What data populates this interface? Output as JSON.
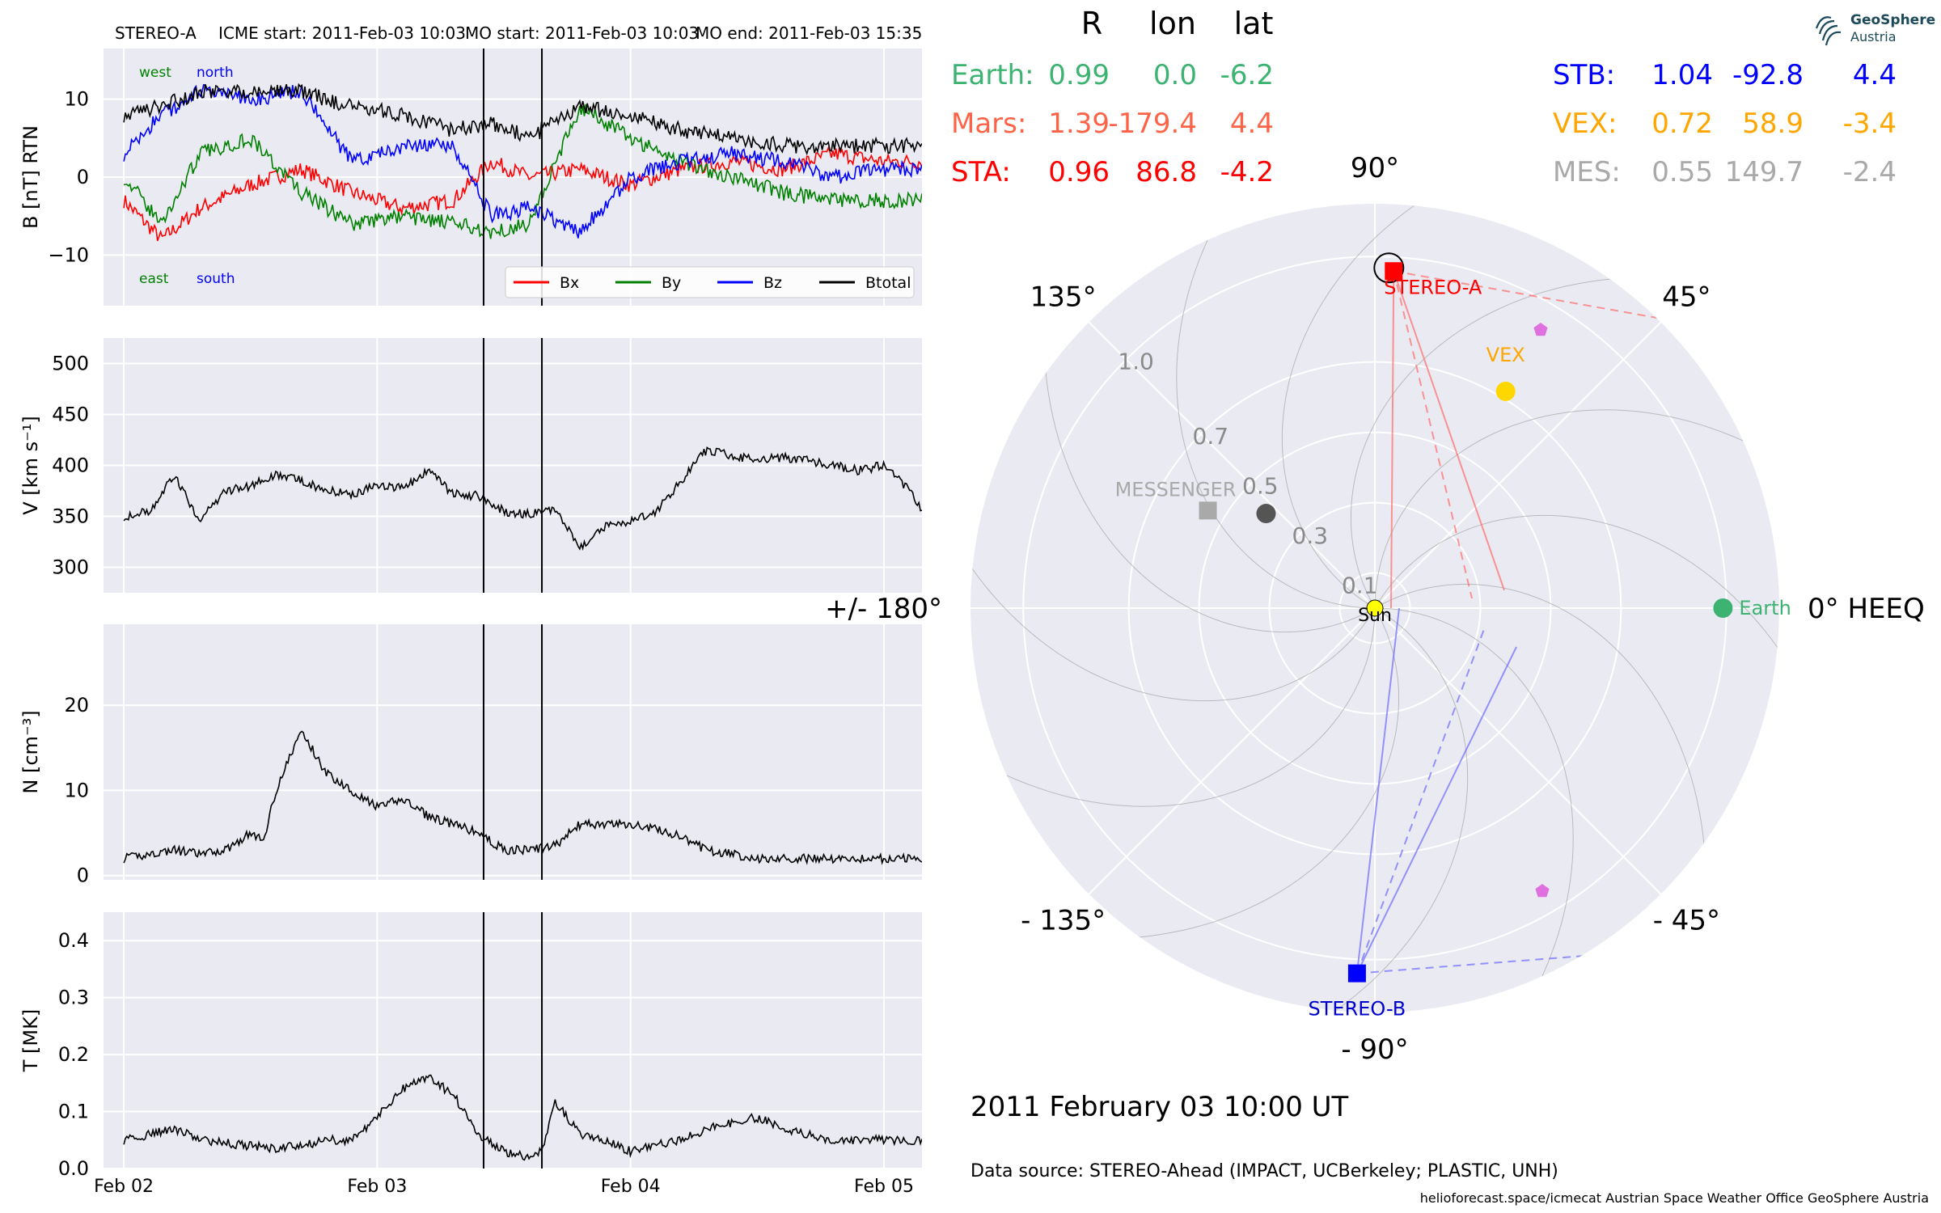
{
  "header": {
    "spacecraft": "STEREO-A",
    "icme_start": "ICME start: 2011-Feb-03 10:03",
    "mo_start": "MO start: 2011-Feb-03 10:03",
    "mo_end": "MO end: 2011-Feb-03 15:35"
  },
  "logo": {
    "name": "GeoSphere",
    "sub": "Austria",
    "icon": "geosphere-logo-icon"
  },
  "colors": {
    "bx": "#ff0000",
    "by": "#008000",
    "bz": "#0000ff",
    "btotal": "#000000",
    "axes_bg": "#eaeaf2",
    "earth": "#3cb371",
    "mars": "#ff6347",
    "sta": "#ff0000",
    "stb": "#0000ff",
    "vex": "#ffa500",
    "mes": "#a9a9a9"
  },
  "chart_data": [
    {
      "type": "line",
      "id": "b-panel",
      "ylabel": "B [nT] RTN",
      "ylim": [
        -16.5,
        16.5
      ],
      "yticks": [
        {
          "v": 10,
          "t": "10"
        },
        {
          "v": 0,
          "t": "0"
        },
        {
          "v": -10,
          "t": "−10"
        }
      ],
      "annotations": [
        {
          "text": "west",
          "color": "#008000",
          "pos": "top-left"
        },
        {
          "text": "north",
          "color": "#0000ff",
          "pos": "top-left"
        },
        {
          "text": "east",
          "color": "#008000",
          "pos": "bottom-left"
        },
        {
          "text": "south",
          "color": "#0000ff",
          "pos": "bottom-left"
        }
      ],
      "legend": {
        "placement": "bottom-right",
        "entries": [
          {
            "name": "Bx",
            "color": "#ff0000"
          },
          {
            "name": "By",
            "color": "#008000"
          },
          {
            "name": "Bz",
            "color": "#0000ff"
          },
          {
            "name": "Btotal",
            "color": "#000000"
          }
        ]
      },
      "series": [
        {
          "name": "Bx",
          "color": "#ff0000",
          "x": [
            0,
            0.15,
            0.3,
            0.5,
            0.7,
            0.9,
            1.1,
            1.3,
            1.45,
            1.6,
            1.8,
            2.0,
            2.2,
            2.4,
            2.6,
            2.8,
            3.0,
            3.15
          ],
          "y": [
            -3,
            -8,
            -4,
            -1,
            1,
            -2,
            -4,
            -3,
            2,
            0,
            1,
            -1,
            1,
            2,
            1,
            3,
            2,
            2
          ]
        },
        {
          "name": "By",
          "color": "#008000",
          "x": [
            0,
            0.15,
            0.3,
            0.5,
            0.7,
            0.9,
            1.1,
            1.3,
            1.45,
            1.6,
            1.8,
            2.0,
            2.2,
            2.4,
            2.6,
            2.8,
            3.0,
            3.15
          ],
          "y": [
            0,
            -6,
            3,
            5,
            -2,
            -6,
            -5,
            -6,
            -7,
            -6,
            9,
            5,
            2,
            0,
            -2,
            -3,
            -3,
            -3
          ]
        },
        {
          "name": "Bz",
          "color": "#0000ff",
          "x": [
            0,
            0.15,
            0.3,
            0.5,
            0.7,
            0.9,
            1.1,
            1.3,
            1.45,
            1.6,
            1.8,
            2.0,
            2.2,
            2.4,
            2.6,
            2.8,
            3.0,
            3.15
          ],
          "y": [
            3,
            8,
            11,
            10,
            11,
            2,
            4,
            4,
            -5,
            -4,
            -7,
            0,
            2,
            3,
            2,
            0,
            1,
            1
          ]
        },
        {
          "name": "Btotal",
          "color": "#000000",
          "x": [
            0,
            0.15,
            0.3,
            0.5,
            0.7,
            0.9,
            1.1,
            1.3,
            1.45,
            1.6,
            1.8,
            2.0,
            2.2,
            2.4,
            2.6,
            2.8,
            3.0,
            3.15
          ],
          "y": [
            8,
            9,
            11,
            11,
            11,
            9,
            8,
            6,
            7,
            5,
            9,
            8,
            6,
            5,
            4,
            4,
            4,
            4
          ]
        }
      ]
    },
    {
      "type": "line",
      "id": "v-panel",
      "ylabel": "V [km s⁻¹]",
      "ylim": [
        275,
        525
      ],
      "yticks": [
        {
          "v": 500,
          "t": "500"
        },
        {
          "v": 450,
          "t": "450"
        },
        {
          "v": 400,
          "t": "400"
        },
        {
          "v": 350,
          "t": "350"
        },
        {
          "v": 300,
          "t": "300"
        }
      ],
      "series": [
        {
          "name": "V",
          "color": "#000000",
          "x": [
            0,
            0.1,
            0.2,
            0.3,
            0.4,
            0.5,
            0.6,
            0.7,
            0.8,
            0.9,
            1.0,
            1.1,
            1.2,
            1.3,
            1.4,
            1.5,
            1.6,
            1.7,
            1.8,
            1.9,
            2.0,
            2.1,
            2.2,
            2.3,
            2.4,
            2.5,
            2.6,
            2.7,
            2.8,
            2.9,
            3.0,
            3.1,
            3.15
          ],
          "y": [
            350,
            355,
            390,
            345,
            375,
            380,
            390,
            385,
            375,
            372,
            380,
            378,
            395,
            372,
            370,
            355,
            352,
            357,
            320,
            340,
            345,
            355,
            385,
            415,
            410,
            405,
            408,
            405,
            400,
            395,
            400,
            375,
            355
          ]
        }
      ]
    },
    {
      "type": "line",
      "id": "n-panel",
      "ylabel": "N [cm⁻³]",
      "ylim": [
        -0.5,
        29.5
      ],
      "yticks": [
        {
          "v": 20,
          "t": "20"
        },
        {
          "v": 10,
          "t": "10"
        },
        {
          "v": 0,
          "t": "0"
        }
      ],
      "series": [
        {
          "name": "N",
          "color": "#000000",
          "x": [
            0,
            0.1,
            0.2,
            0.3,
            0.4,
            0.5,
            0.55,
            0.6,
            0.7,
            0.8,
            0.9,
            1.0,
            1.1,
            1.2,
            1.3,
            1.4,
            1.5,
            1.6,
            1.7,
            1.8,
            1.9,
            2.0,
            2.1,
            2.2,
            2.3,
            2.4,
            2.5,
            2.6,
            2.8,
            3.0,
            3.15
          ],
          "y": [
            2,
            2.5,
            3,
            2.5,
            3,
            5,
            4,
            10,
            17,
            12,
            10,
            8,
            9,
            7,
            6,
            5,
            3,
            3,
            3.5,
            6,
            6,
            6,
            5.5,
            4.5,
            3,
            2.5,
            2,
            2,
            2,
            2,
            2
          ]
        }
      ]
    },
    {
      "type": "line",
      "id": "t-panel",
      "ylabel": "T [MK]",
      "ylim": [
        0,
        0.45
      ],
      "yticks": [
        {
          "v": 0.4,
          "t": "0.4"
        },
        {
          "v": 0.3,
          "t": "0.3"
        },
        {
          "v": 0.2,
          "t": "0.2"
        },
        {
          "v": 0.1,
          "t": "0.1"
        },
        {
          "v": 0.0,
          "t": "0.0"
        }
      ],
      "xticks": [
        {
          "v": 0,
          "t": "Feb 02"
        },
        {
          "v": 1,
          "t": "Feb 03"
        },
        {
          "v": 2,
          "t": "Feb 04"
        },
        {
          "v": 3,
          "t": "Feb 05"
        }
      ],
      "xlim": [
        -0.08,
        3.15
      ],
      "series": [
        {
          "name": "T",
          "color": "#000000",
          "x": [
            0,
            0.1,
            0.2,
            0.3,
            0.4,
            0.5,
            0.6,
            0.7,
            0.8,
            0.9,
            1.0,
            1.1,
            1.2,
            1.3,
            1.4,
            1.5,
            1.6,
            1.65,
            1.7,
            1.8,
            1.9,
            2.0,
            2.1,
            2.2,
            2.3,
            2.4,
            2.5,
            2.6,
            2.7,
            2.8,
            3.0,
            3.15
          ],
          "y": [
            0.05,
            0.06,
            0.07,
            0.05,
            0.045,
            0.04,
            0.035,
            0.04,
            0.05,
            0.05,
            0.09,
            0.14,
            0.16,
            0.13,
            0.06,
            0.03,
            0.02,
            0.03,
            0.12,
            0.06,
            0.05,
            0.03,
            0.04,
            0.05,
            0.07,
            0.08,
            0.09,
            0.07,
            0.06,
            0.05,
            0.05,
            0.05
          ]
        }
      ]
    },
    {
      "type": "scatter",
      "id": "polar-orbit-plot",
      "angle_labels": [
        {
          "deg": 0,
          "t": "0° HEEQ"
        },
        {
          "deg": 45,
          "t": "45°"
        },
        {
          "deg": 90,
          "t": "90°"
        },
        {
          "deg": 135,
          "t": "135°"
        },
        {
          "deg": 180,
          "t": "+/- 180°"
        },
        {
          "deg": -135,
          "t": "- 135°"
        },
        {
          "deg": -90,
          "t": "- 90°"
        },
        {
          "deg": -45,
          "t": "- 45°"
        }
      ],
      "radial_labels": [
        {
          "r": 0.1,
          "t": "0.1"
        },
        {
          "r": 0.3,
          "t": "0.3"
        },
        {
          "r": 0.5,
          "t": "0.5"
        },
        {
          "r": 0.7,
          "t": "0.7"
        },
        {
          "r": 1.0,
          "t": "1.0"
        }
      ],
      "rmax": 1.15,
      "bodies": [
        {
          "name": "Earth",
          "label": "Earth",
          "r": 0.99,
          "lon": 0.0,
          "marker": "circle",
          "color": "#3cb371"
        },
        {
          "name": "STEREO-A",
          "label": "STEREO-A",
          "r": 0.96,
          "lon": 86.8,
          "marker": "square",
          "color": "#ff0000"
        },
        {
          "name": "STEREO-B",
          "label": "STEREO-B",
          "r": 1.04,
          "lon": -92.8,
          "marker": "square",
          "color": "#0000ff"
        },
        {
          "name": "VEX",
          "label": "VEX",
          "r": 0.72,
          "lon": 58.9,
          "marker": "circle",
          "color": "#ffd700"
        },
        {
          "name": "MESSENGER",
          "label": "MESSENGER",
          "r": 0.55,
          "lon": 149.7,
          "marker": "square",
          "color": "#a9a9a9"
        },
        {
          "name": "Mercury",
          "label": "",
          "r": 0.41,
          "lon": 139,
          "marker": "circle",
          "color": "#555555"
        },
        {
          "name": "Sun",
          "label": "Sun",
          "r": 0,
          "lon": 0,
          "marker": "circle",
          "color": "#ffff00"
        }
      ],
      "table": {
        "headers": [
          "R",
          "lon",
          "lat"
        ],
        "rows": [
          {
            "name": "Earth:",
            "R": "0.99",
            "lon": "0.0",
            "lat": "-6.2",
            "color": "#3cb371"
          },
          {
            "name": "Mars:",
            "R": "1.39",
            "lon": "-179.4",
            "lat": "4.4",
            "color": "#ff6347"
          },
          {
            "name": "STA:",
            "R": "0.96",
            "lon": "86.8",
            "lat": "-4.2",
            "color": "#ff0000"
          },
          {
            "name": "STB:",
            "R": "1.04",
            "lon": "-92.8",
            "lat": "4.4",
            "color": "#0000ff"
          },
          {
            "name": "VEX:",
            "R": "0.72",
            "lon": "58.9",
            "lat": "-3.4",
            "color": "#ffa500"
          },
          {
            "name": "MES:",
            "R": "0.55",
            "lon": "149.7",
            "lat": "-2.4",
            "color": "#a9a9a9"
          }
        ]
      },
      "timestamp": "2011 February 03  10:00 UT",
      "data_source": "Data source: STEREO-Ahead (IMPACT, UCBerkeley; PLASTIC, UNH)",
      "footer": "helioforecast.space/icmecat   Austrian Space Weather Office   GeoSphere Austria"
    }
  ],
  "markers": {
    "event_lines_x": [
      1.42,
      1.65
    ]
  }
}
